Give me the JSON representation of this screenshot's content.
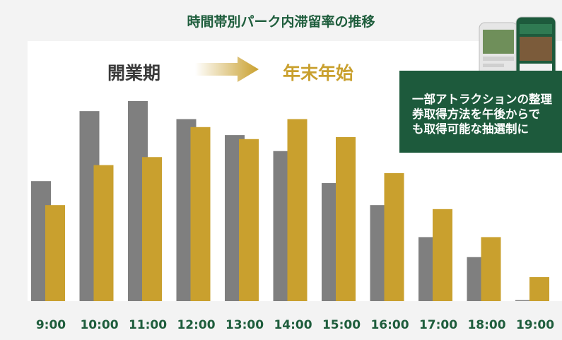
{
  "chart_data": {
    "type": "bar",
    "title": "時間帯別パーク内滞留率の推移",
    "categories": [
      "9:00",
      "10:00",
      "11:00",
      "12:00",
      "13:00",
      "14:00",
      "15:00",
      "16:00",
      "17:00",
      "18:00",
      "19:00"
    ],
    "series": [
      {
        "name": "開業期",
        "color": "#7f7f7f",
        "values": [
          60,
          95,
          100,
          91,
          83,
          75,
          59,
          48,
          32,
          22,
          0.5
        ]
      },
      {
        "name": "年末年始",
        "color": "#c9a02e",
        "values": [
          48,
          68,
          72,
          87,
          81,
          91,
          82,
          64,
          46,
          32,
          12
        ]
      }
    ],
    "ylim": [
      0,
      100
    ],
    "grid": false,
    "legend": "top",
    "annotation": [
      "一部アトラクションの整理",
      "券取得方法を午後からで",
      "も取得可能な抽選制に"
    ]
  },
  "colors": {
    "title": "#1e5d3c",
    "callout_bg": "#1d5a3c",
    "arrow": "#c9a02e"
  }
}
